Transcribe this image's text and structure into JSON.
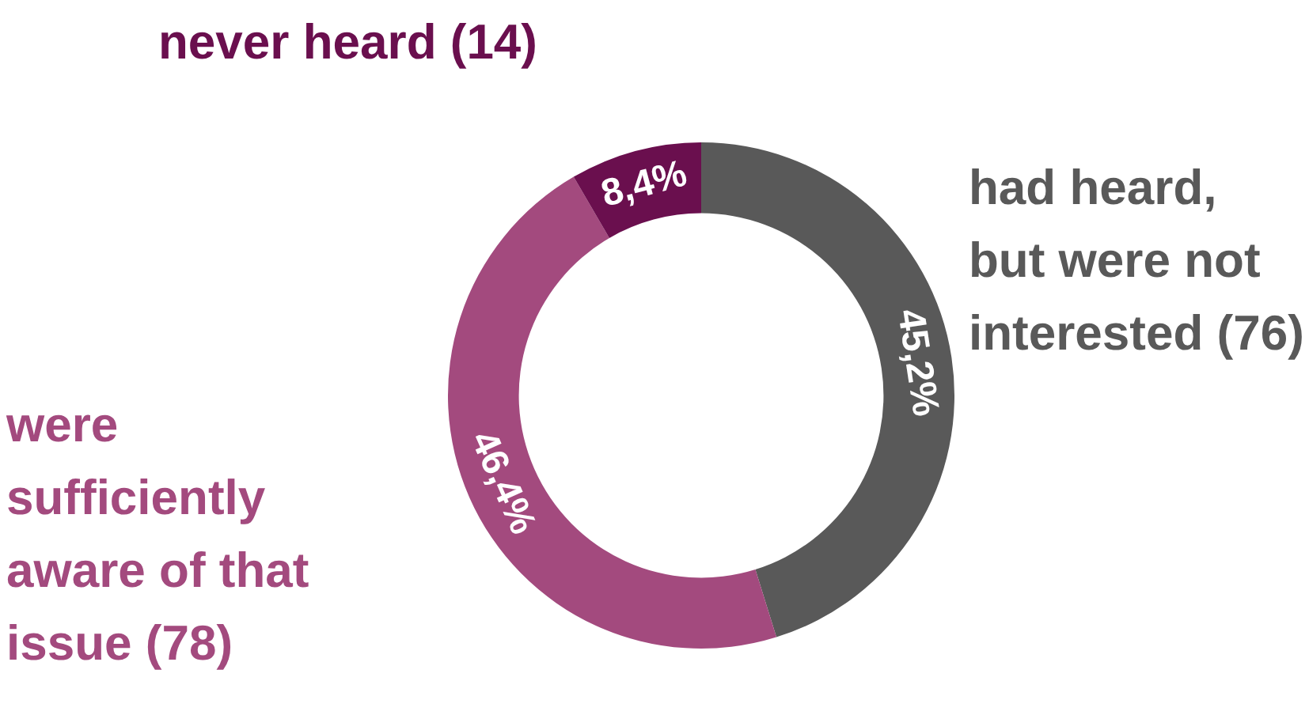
{
  "chart_data": {
    "type": "donut",
    "categories": [
      "had heard, but were not interested (76)",
      "were sufficiently aware of that issue (78)",
      "never heard (14)"
    ],
    "values": [
      45.2,
      46.4,
      8.4
    ],
    "colors": [
      "#595959",
      "#a34a7e",
      "#6a0f4e"
    ],
    "value_labels": [
      "45,2%",
      "46,4%",
      "8,4%"
    ]
  }
}
